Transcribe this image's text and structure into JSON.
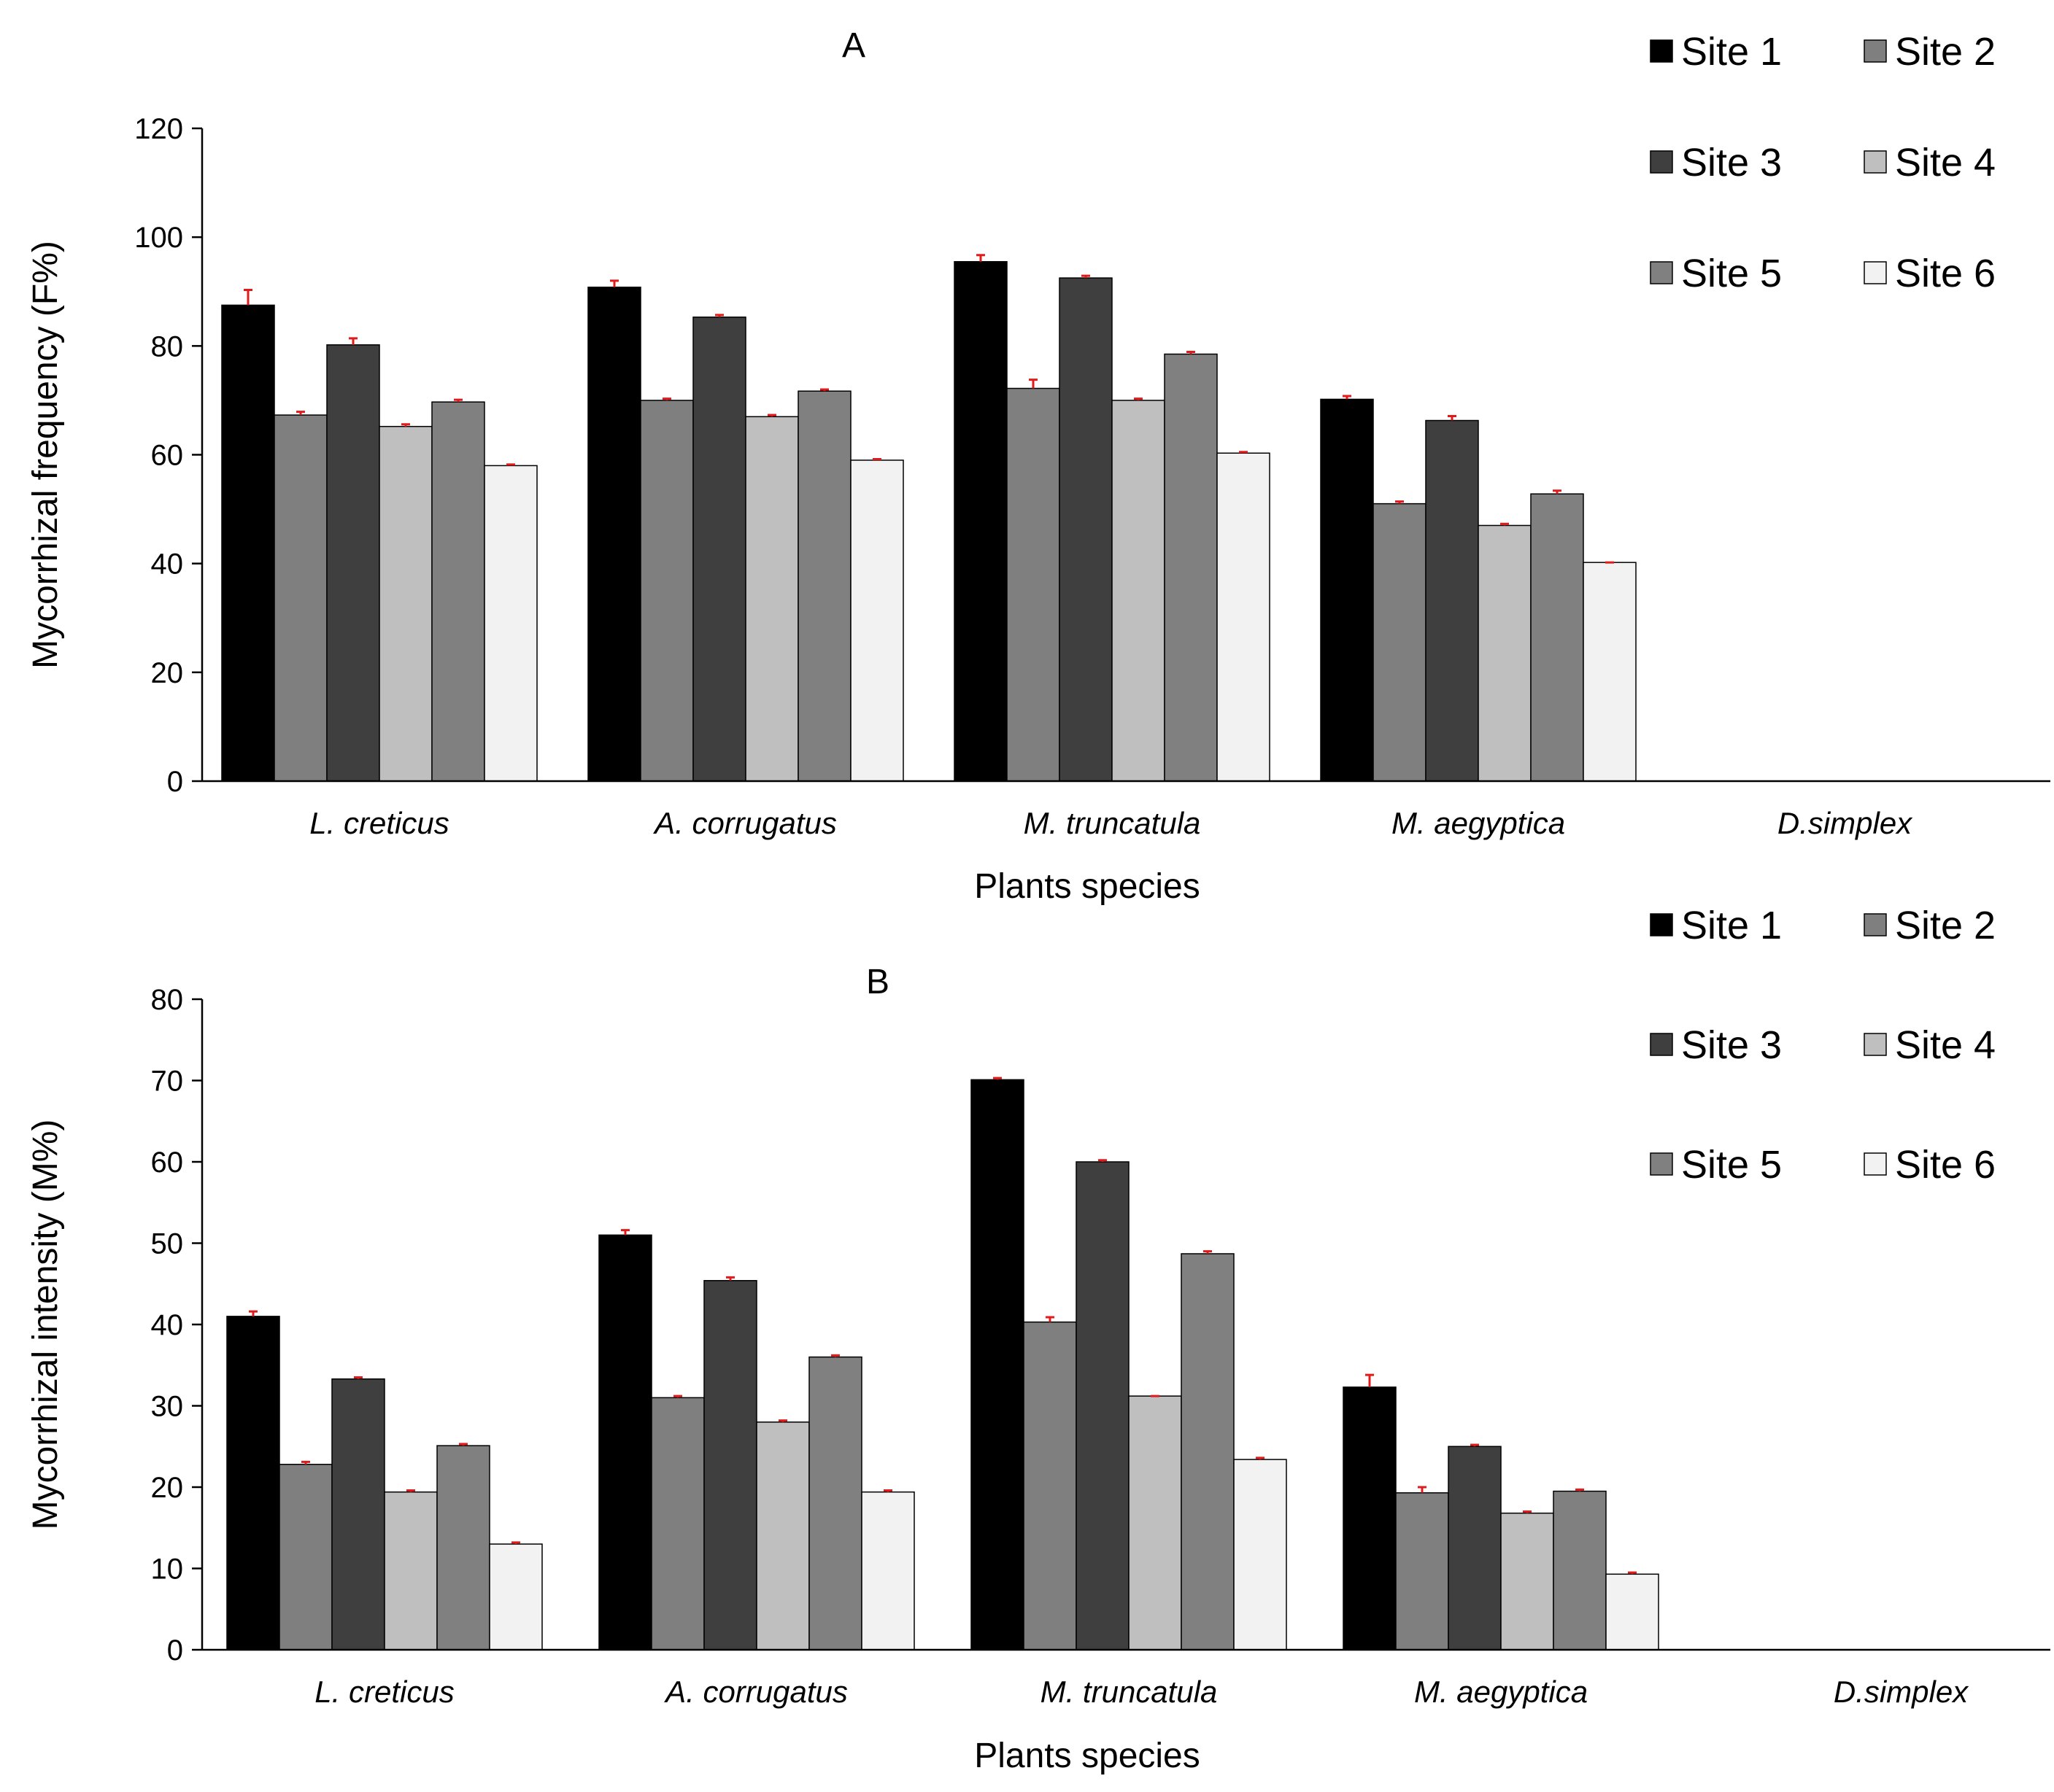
{
  "chart_data": [
    {
      "type": "bar",
      "title": "A",
      "xlabel": "Plants species",
      "ylabel": "Mycorrhizal frequency (F%)",
      "ylim": [
        0,
        120
      ],
      "yticks": [
        0,
        20,
        40,
        60,
        80,
        100,
        120
      ],
      "grid": false,
      "legend_position": "top-right",
      "categories": [
        "L. creticus",
        "A. corrugatus",
        "M. truncatula",
        "M. aegyptica",
        "D.simplex"
      ],
      "series": [
        {
          "name": "Site 1",
          "color": "#000000",
          "values": [
            87.5,
            90.8,
            95.5,
            70.2,
            0
          ],
          "errors": [
            2.8,
            1.2,
            1.2,
            0.6,
            0
          ]
        },
        {
          "name": "Site 2",
          "color": "#7f7f7f",
          "values": [
            67.3,
            70.0,
            72.2,
            51.0,
            0
          ],
          "errors": [
            0.6,
            0.3,
            1.6,
            0.4,
            0
          ]
        },
        {
          "name": "Site 3",
          "color": "#3f3f3f",
          "values": [
            80.2,
            85.3,
            92.5,
            66.3,
            0
          ],
          "errors": [
            1.2,
            0.4,
            0.4,
            0.8,
            0
          ]
        },
        {
          "name": "Site 4",
          "color": "#bfbfbf",
          "values": [
            65.2,
            67.0,
            70.0,
            47.0,
            0
          ],
          "errors": [
            0.4,
            0.3,
            0.3,
            0.3,
            0
          ]
        },
        {
          "name": "Site 5",
          "color": "#808080",
          "values": [
            69.7,
            71.7,
            78.5,
            52.8,
            0
          ],
          "errors": [
            0.4,
            0.3,
            0.4,
            0.6,
            0
          ]
        },
        {
          "name": "Site 6",
          "color": "#f2f2f2",
          "values": [
            58.0,
            59.0,
            60.3,
            40.2,
            0
          ],
          "errors": [
            0.2,
            0.2,
            0.2,
            0.0,
            0
          ]
        }
      ]
    },
    {
      "type": "bar",
      "title": "B",
      "xlabel": "Plants species",
      "ylabel": "Mycorrhizal intensity (M%)",
      "ylim": [
        0,
        80
      ],
      "yticks": [
        0,
        10,
        20,
        30,
        40,
        50,
        60,
        70,
        80
      ],
      "grid": false,
      "legend_position": "top-right",
      "categories": [
        "L. creticus",
        "A. corrugatus",
        "M. truncatula",
        "M. aegyptica",
        "D.simplex"
      ],
      "series": [
        {
          "name": "Site 1",
          "color": "#000000",
          "values": [
            41.0,
            51.0,
            70.1,
            32.3,
            0
          ],
          "errors": [
            0.6,
            0.6,
            0.2,
            1.5,
            0
          ]
        },
        {
          "name": "Site 2",
          "color": "#7f7f7f",
          "values": [
            22.8,
            31.0,
            40.3,
            19.3,
            0
          ],
          "errors": [
            0.3,
            0.2,
            0.6,
            0.7,
            0
          ]
        },
        {
          "name": "Site 3",
          "color": "#3f3f3f",
          "values": [
            33.3,
            45.4,
            60.0,
            25.0,
            0
          ],
          "errors": [
            0.2,
            0.4,
            0.2,
            0.2,
            0
          ]
        },
        {
          "name": "Site 4",
          "color": "#bfbfbf",
          "values": [
            19.4,
            28.0,
            31.2,
            16.8,
            0
          ],
          "errors": [
            0.2,
            0.2,
            0.0,
            0.2,
            0
          ]
        },
        {
          "name": "Site 5",
          "color": "#808080",
          "values": [
            25.1,
            36.0,
            48.7,
            19.5,
            0
          ],
          "errors": [
            0.2,
            0.2,
            0.3,
            0.2,
            0
          ]
        },
        {
          "name": "Site 6",
          "color": "#f2f2f2",
          "values": [
            13.0,
            19.4,
            23.4,
            9.3,
            0
          ],
          "errors": [
            0.2,
            0.2,
            0.2,
            0.2,
            0
          ]
        }
      ]
    }
  ]
}
